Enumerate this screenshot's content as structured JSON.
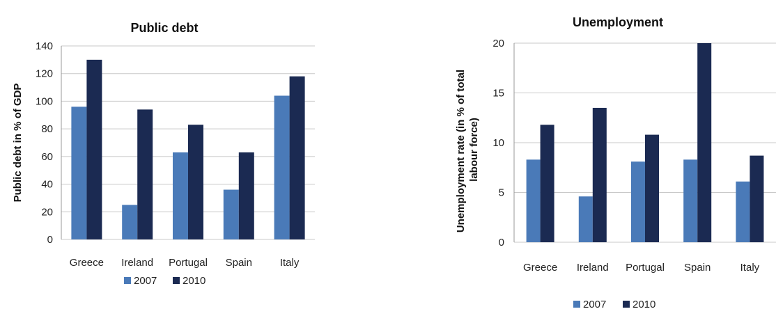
{
  "chart_data": [
    {
      "type": "bar",
      "title": "Public debt",
      "xlabel": "",
      "ylabel": "Public debt in % of GDP",
      "ylim": [
        0,
        140
      ],
      "yticks": [
        0,
        20,
        40,
        60,
        80,
        100,
        120,
        140
      ],
      "categories": [
        "Greece",
        "Ireland",
        "Portugal",
        "Spain",
        "Italy"
      ],
      "series": [
        {
          "name": "2007",
          "color": "#4a7ab8",
          "values": [
            96,
            25,
            63,
            36,
            104
          ]
        },
        {
          "name": "2010",
          "color": "#1b2a52",
          "values": [
            130,
            94,
            83,
            63,
            118
          ]
        }
      ],
      "grid": true,
      "legend": "bottom"
    },
    {
      "type": "bar",
      "title": "Unemployment",
      "xlabel": "",
      "ylabel": [
        "Unemployment rate (in % of total",
        "labour force)"
      ],
      "ylim": [
        0,
        20
      ],
      "yticks": [
        0,
        5,
        10,
        15,
        20
      ],
      "categories": [
        "Greece",
        "Ireland",
        "Portugal",
        "Spain",
        "Italy"
      ],
      "series": [
        {
          "name": "2007",
          "color": "#4a7ab8",
          "values": [
            8.3,
            4.6,
            8.1,
            8.3,
            6.1
          ]
        },
        {
          "name": "2010",
          "color": "#1b2a52",
          "values": [
            11.8,
            13.5,
            10.8,
            20,
            8.7
          ]
        }
      ],
      "grid": true,
      "legend": "bottom"
    }
  ]
}
